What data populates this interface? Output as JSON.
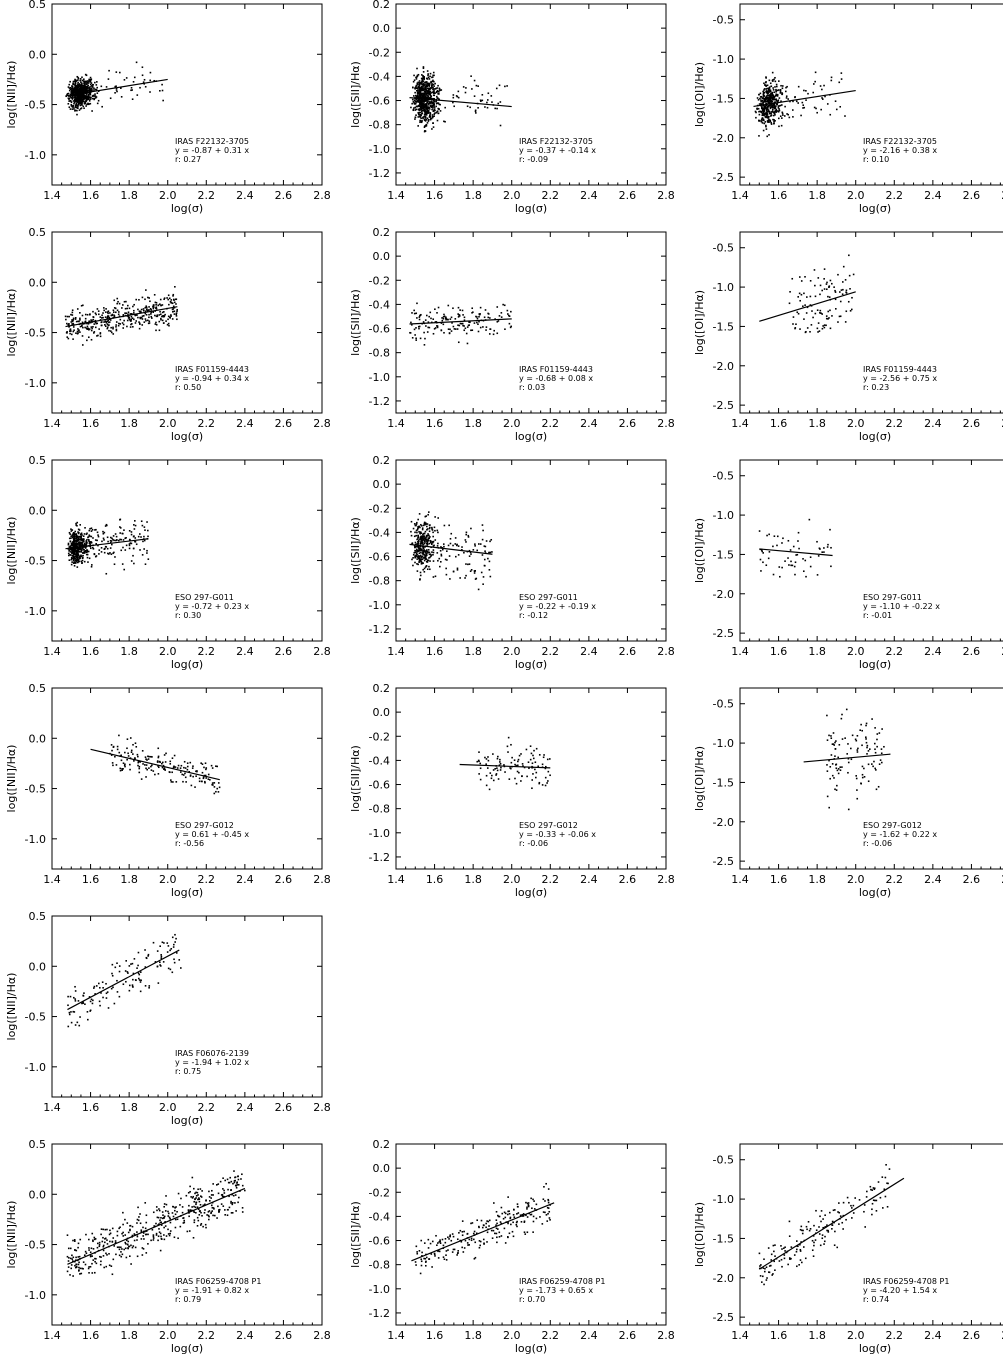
{
  "axis": {
    "xlabel": "log(σ)",
    "x_ticks": [
      "1.4",
      "1.6",
      "1.8",
      "2.0",
      "2.2",
      "2.4",
      "2.6",
      "2.8"
    ]
  },
  "columns": [
    {
      "ylabel": "log([NII]/Hα)",
      "ylim": [
        -1.3,
        0.5
      ],
      "y_ticks": [
        "0.5",
        "0.0",
        "-0.5",
        "-1.0"
      ]
    },
    {
      "ylabel": "log([SII]/Hα)",
      "ylim": [
        -1.3,
        0.2
      ],
      "y_ticks": [
        "0.2",
        "0.0",
        "-0.2",
        "-0.4",
        "-0.6",
        "-0.8",
        "-1.0",
        "-1.2"
      ]
    },
    {
      "ylabel": "log([OI]/Hα)",
      "ylim": [
        -2.6,
        -0.3
      ],
      "y_ticks": [
        "-0.5",
        "-1.0",
        "-1.5",
        "-2.0",
        "-2.5"
      ]
    }
  ],
  "chart_data": [
    {
      "type": "scatter",
      "row": 0,
      "col": 0,
      "xlim": [
        1.4,
        2.8
      ],
      "ylim": [
        -1.3,
        0.5
      ],
      "name": "IRAS F22132-3705",
      "eq": "y =  -0.87 +  0.31 x",
      "r": "r:  0.27",
      "intercept": -0.87,
      "slope": 0.31,
      "fit_x": [
        1.47,
        2.0
      ],
      "cloud": [
        {
          "n": 650,
          "x": [
            1.47,
            1.68
          ],
          "xc": 1.52,
          "xw": 0.05,
          "ysd": 0.07
        },
        {
          "n": 40,
          "x": [
            1.68,
            1.98
          ],
          "ysd": 0.09
        }
      ]
    },
    {
      "type": "scatter",
      "row": 0,
      "col": 1,
      "xlim": [
        1.4,
        2.8
      ],
      "ylim": [
        -1.3,
        0.2
      ],
      "name": "IRAS F22132-3705",
      "eq": "y =  -0.37 +  -0.14 x",
      "r": "r:  -0.09",
      "intercept": -0.37,
      "slope": -0.14,
      "fit_x": [
        1.47,
        2.0
      ],
      "cloud": [
        {
          "n": 650,
          "x": [
            1.47,
            1.68
          ],
          "xc": 1.52,
          "xw": 0.05,
          "ysd": 0.1
        },
        {
          "n": 45,
          "x": [
            1.68,
            1.98
          ],
          "ysd": 0.1
        }
      ]
    },
    {
      "type": "scatter",
      "row": 0,
      "col": 2,
      "xlim": [
        1.4,
        2.8
      ],
      "ylim": [
        -2.6,
        -0.3
      ],
      "name": "IRAS F22132-3705",
      "eq": "y =  -2.16 +  0.38 x",
      "r": "r:  0.10",
      "intercept": -2.16,
      "slope": 0.38,
      "fit_x": [
        1.47,
        2.0
      ],
      "cloud": [
        {
          "n": 420,
          "x": [
            1.47,
            1.65
          ],
          "xc": 1.52,
          "xw": 0.05,
          "ysd": 0.14
        },
        {
          "n": 45,
          "x": [
            1.65,
            1.95
          ],
          "ysd": 0.15
        }
      ]
    },
    {
      "type": "scatter",
      "row": 1,
      "col": 0,
      "xlim": [
        1.4,
        2.8
      ],
      "ylim": [
        -1.3,
        0.5
      ],
      "name": "IRAS F01159-4443",
      "eq": "y =  -0.94 +  0.34 x",
      "r": "r:  0.50",
      "intercept": -0.94,
      "slope": 0.34,
      "fit_x": [
        1.47,
        2.05
      ],
      "cloud": [
        {
          "n": 420,
          "x": [
            1.47,
            2.05
          ],
          "ysd": 0.08
        }
      ]
    },
    {
      "type": "scatter",
      "row": 1,
      "col": 1,
      "xlim": [
        1.4,
        2.8
      ],
      "ylim": [
        -1.3,
        0.2
      ],
      "name": "IRAS F01159-4443",
      "eq": "y =  -0.68 +  0.08 x",
      "r": "r:  0.03",
      "intercept": -0.68,
      "slope": 0.08,
      "fit_x": [
        1.47,
        2.0
      ],
      "cloud": [
        {
          "n": 170,
          "x": [
            1.47,
            2.0
          ],
          "ysd": 0.07
        }
      ]
    },
    {
      "type": "scatter",
      "row": 1,
      "col": 2,
      "xlim": [
        1.4,
        2.8
      ],
      "ylim": [
        -2.6,
        -0.3
      ],
      "name": "IRAS F01159-4443",
      "eq": "y =  -2.56 +  0.75 x",
      "r": "r:  0.23",
      "intercept": -2.56,
      "slope": 0.75,
      "fit_x": [
        1.5,
        2.0
      ],
      "cloud": [
        {
          "n": 110,
          "x": [
            1.65,
            2.0
          ],
          "ysd": 0.22
        }
      ]
    },
    {
      "type": "scatter",
      "row": 2,
      "col": 0,
      "xlim": [
        1.4,
        2.8
      ],
      "ylim": [
        -1.3,
        0.5
      ],
      "name": "ESO 297-G011",
      "eq": "y =  -0.72 +  0.23 x",
      "r": "r:  0.30",
      "intercept": -0.72,
      "slope": 0.23,
      "fit_x": [
        1.47,
        1.9
      ],
      "cloud": [
        {
          "n": 450,
          "x": [
            1.47,
            1.62
          ],
          "xc": 1.51,
          "xw": 0.04,
          "ysd": 0.08
        },
        {
          "n": 150,
          "x": [
            1.55,
            1.9
          ],
          "ysd": 0.12
        }
      ]
    },
    {
      "type": "scatter",
      "row": 2,
      "col": 1,
      "xlim": [
        1.4,
        2.8
      ],
      "ylim": [
        -1.3,
        0.2
      ],
      "name": "ESO 297-G011",
      "eq": "y =  -0.22 +  -0.19 x",
      "r": "r:  -0.12",
      "intercept": -0.22,
      "slope": -0.19,
      "fit_x": [
        1.47,
        1.9
      ],
      "cloud": [
        {
          "n": 300,
          "x": [
            1.47,
            1.62
          ],
          "xc": 1.51,
          "xw": 0.04,
          "ysd": 0.1
        },
        {
          "n": 120,
          "x": [
            1.55,
            1.9
          ],
          "ysd": 0.14
        }
      ]
    },
    {
      "type": "scatter",
      "row": 2,
      "col": 2,
      "xlim": [
        1.4,
        2.8
      ],
      "ylim": [
        -2.6,
        -0.3
      ],
      "name": "ESO 297-G011",
      "eq": "y =  -1.10 +  -0.22 x",
      "r": "r:  -0.01",
      "intercept": -1.1,
      "slope": -0.22,
      "fit_x": [
        1.5,
        1.88
      ],
      "cloud": [
        {
          "n": 60,
          "x": [
            1.5,
            1.88
          ],
          "ysd": 0.2
        }
      ]
    },
    {
      "type": "scatter",
      "row": 3,
      "col": 0,
      "xlim": [
        1.4,
        2.8
      ],
      "ylim": [
        -1.3,
        0.5
      ],
      "name": "ESO 297-G012",
      "eq": "y =   0.61 +  -0.45 x",
      "r": "r:  -0.56",
      "intercept": 0.61,
      "slope": -0.45,
      "fit_x": [
        1.6,
        2.27
      ],
      "cloud": [
        {
          "n": 180,
          "x": [
            1.7,
            2.27
          ],
          "ysd": 0.08
        }
      ]
    },
    {
      "type": "scatter",
      "row": 3,
      "col": 1,
      "xlim": [
        1.4,
        2.8
      ],
      "ylim": [
        -1.3,
        0.2
      ],
      "name": "ESO 297-G012",
      "eq": "y =  -0.33 +  -0.06 x",
      "r": "r:  -0.06",
      "intercept": -0.33,
      "slope": -0.06,
      "fit_x": [
        1.73,
        2.2
      ],
      "cloud": [
        {
          "n": 110,
          "x": [
            1.82,
            2.2
          ],
          "ysd": 0.09
        }
      ]
    },
    {
      "type": "scatter",
      "row": 3,
      "col": 2,
      "xlim": [
        1.4,
        2.8
      ],
      "ylim": [
        -2.6,
        -0.3
      ],
      "name": "ESO 297-G012",
      "eq": "y =  -1.62 +  0.22 x",
      "r": "r:  -0.06",
      "intercept": -1.62,
      "slope": 0.22,
      "fit_x": [
        1.73,
        2.18
      ],
      "cloud": [
        {
          "n": 110,
          "x": [
            1.85,
            2.15
          ],
          "ysd": 0.25
        }
      ]
    },
    {
      "type": "scatter",
      "row": 4,
      "col": 0,
      "xlim": [
        1.4,
        2.8
      ],
      "ylim": [
        -1.3,
        0.5
      ],
      "name": "IRAS F06076-2139",
      "eq": "y =  -1.94 +  1.02 x",
      "r": "r:  0.75",
      "intercept": -1.94,
      "slope": 1.02,
      "fit_x": [
        1.48,
        2.06
      ],
      "cloud": [
        {
          "n": 140,
          "x": [
            1.48,
            2.08
          ],
          "ysd": 0.12
        }
      ]
    },
    {
      "type": "scatter",
      "row": 5,
      "col": 0,
      "xlim": [
        1.4,
        2.8
      ],
      "ylim": [
        -1.3,
        0.5
      ],
      "name": "IRAS F06259-4708 P1",
      "eq": "y =  -1.91 +  0.82 x",
      "r": "r:  0.79",
      "intercept": -1.91,
      "slope": 0.82,
      "fit_x": [
        1.48,
        2.4
      ],
      "cloud": [
        {
          "n": 480,
          "x": [
            1.48,
            2.4
          ],
          "ysd": 0.12
        }
      ]
    },
    {
      "type": "scatter",
      "row": 5,
      "col": 1,
      "xlim": [
        1.4,
        2.8
      ],
      "ylim": [
        -1.3,
        0.2
      ],
      "name": "IRAS F06259-4708 P1",
      "eq": "y =  -1.73 +  0.65 x",
      "r": "r:  0.70",
      "intercept": -1.73,
      "slope": 0.65,
      "fit_x": [
        1.48,
        2.22
      ],
      "cloud": [
        {
          "n": 240,
          "x": [
            1.5,
            2.2
          ],
          "ysd": 0.08
        }
      ]
    },
    {
      "type": "scatter",
      "row": 5,
      "col": 2,
      "xlim": [
        1.4,
        2.8
      ],
      "ylim": [
        -2.6,
        -0.3
      ],
      "name": "IRAS F06259-4708 P1",
      "eq": "y =  -4.20 +  1.54 x",
      "r": "r:  0.74",
      "intercept": -4.2,
      "slope": 1.54,
      "fit_x": [
        1.5,
        2.25
      ],
      "cloud": [
        {
          "n": 170,
          "x": [
            1.5,
            2.2
          ],
          "ysd": 0.14
        }
      ]
    }
  ]
}
